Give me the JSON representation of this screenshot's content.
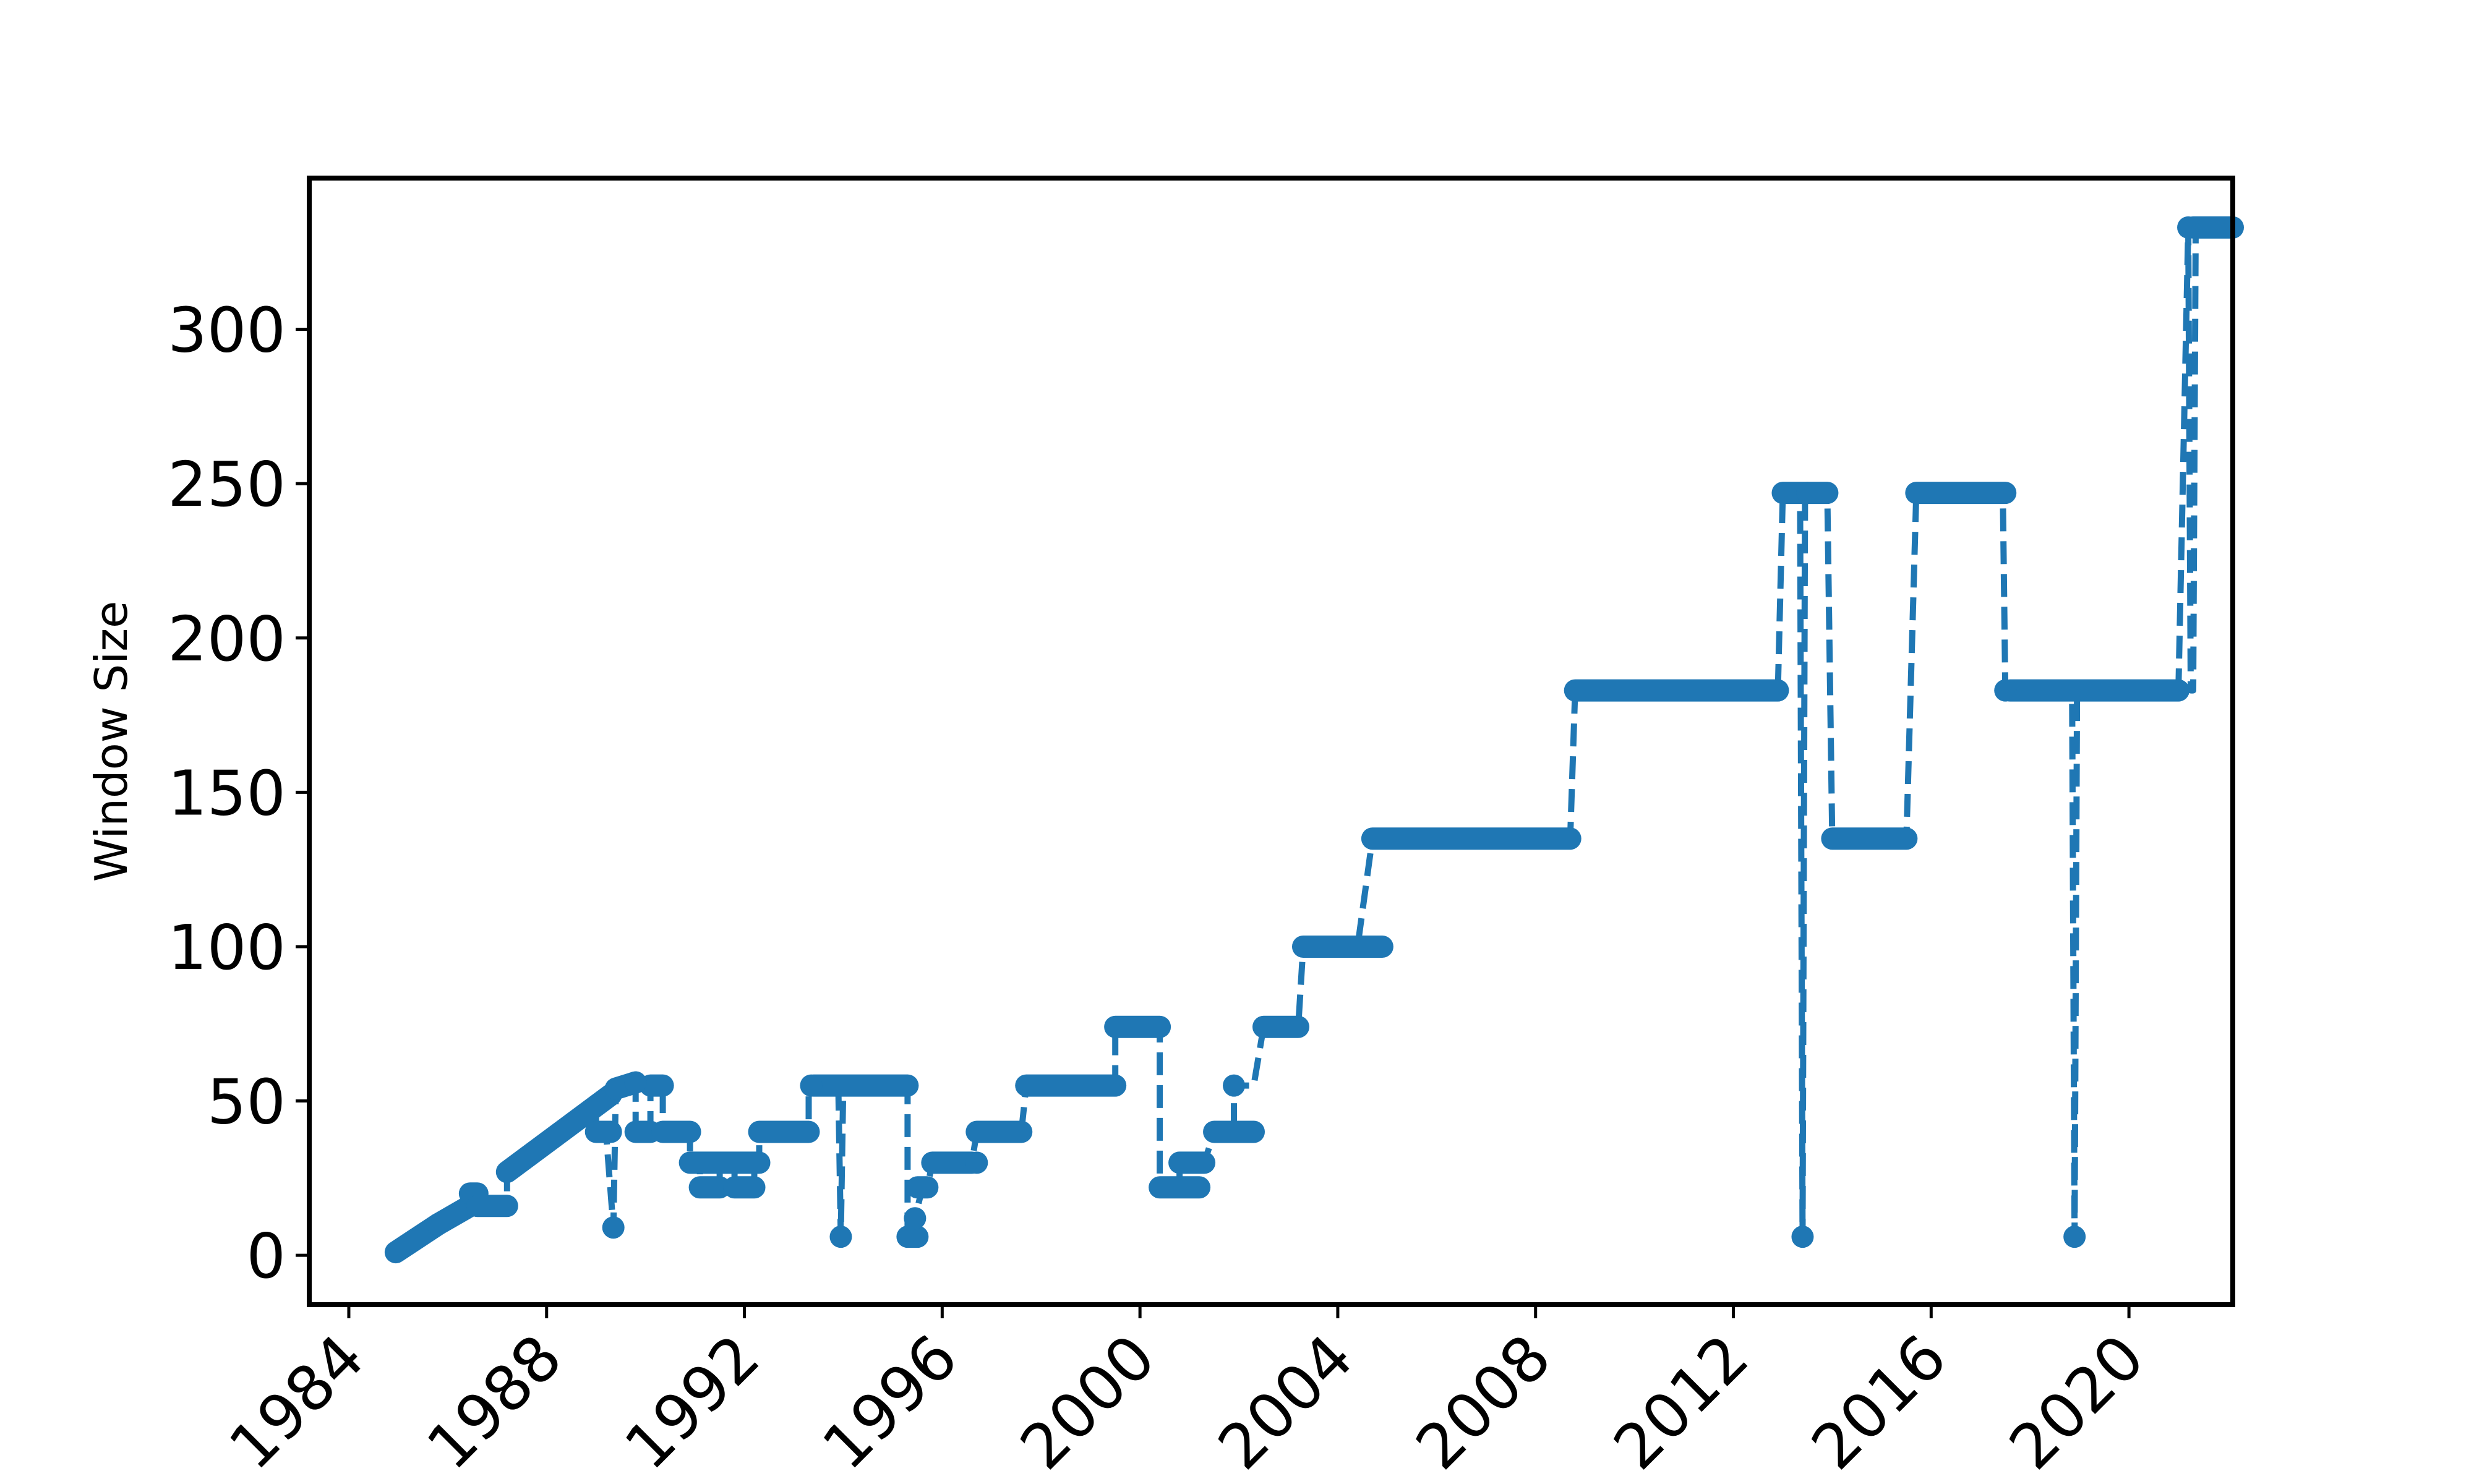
{
  "chart_data": {
    "type": "line",
    "title": "",
    "xlabel": "",
    "ylabel": "Window Size",
    "xlim": [
      1983.2,
      2022.1
    ],
    "ylim": [
      -16,
      349
    ],
    "grid": false,
    "legend": "none",
    "line_style": "dashed",
    "marker": "circle",
    "color": "#1f77b4",
    "x_ticks": [
      1984,
      1988,
      1992,
      1996,
      2000,
      2004,
      2008,
      2012,
      2016,
      2020
    ],
    "x_tick_labels": [
      "1984",
      "1988",
      "1992",
      "1996",
      "2000",
      "2004",
      "2008",
      "2012",
      "2016",
      "2020"
    ],
    "y_ticks": [
      0,
      50,
      100,
      150,
      200,
      250,
      300
    ],
    "y_tick_labels": [
      "0",
      "50",
      "100",
      "150",
      "200",
      "250",
      "300"
    ],
    "series": [
      {
        "segments": [
          {
            "x0": 1984.95,
            "x1": 1985.8,
            "y0": 1,
            "y1": 10
          },
          {
            "x0": 1985.8,
            "x1": 1986.45,
            "y0": 10,
            "y1": 16
          },
          {
            "x0": 1986.45,
            "x1": 1986.6,
            "y0": 20,
            "y1": 20
          },
          {
            "x0": 1986.6,
            "x1": 1987.2,
            "y0": 16,
            "y1": 16
          },
          {
            "x0": 1987.2,
            "x1": 1989.3,
            "y0": 27,
            "y1": 52
          },
          {
            "x0": 1989.0,
            "x1": 1989.3,
            "y0": 40,
            "y1": 40
          },
          {
            "x0": 1989.4,
            "x1": 1989.8,
            "y0": 54,
            "y1": 56
          },
          {
            "x0": 1989.8,
            "x1": 1990.1,
            "y0": 40,
            "y1": 40
          },
          {
            "x0": 1990.1,
            "x1": 1990.35,
            "y0": 55,
            "y1": 55
          },
          {
            "x0": 1990.35,
            "x1": 1990.9,
            "y0": 40,
            "y1": 40
          },
          {
            "x0": 1990.9,
            "x1": 1992.3,
            "y0": 30,
            "y1": 30
          },
          {
            "x0": 1991.1,
            "x1": 1991.5,
            "y0": 22,
            "y1": 22
          },
          {
            "x0": 1991.8,
            "x1": 1992.2,
            "y0": 22,
            "y1": 22
          },
          {
            "x0": 1992.3,
            "x1": 1993.3,
            "y0": 40,
            "y1": 40
          },
          {
            "x0": 1993.4,
            "x1": 1995.3,
            "y0": 55,
            "y1": 55
          },
          {
            "x0": 1995.3,
            "x1": 1995.5,
            "y0": 6,
            "y1": 6
          },
          {
            "x0": 1995.5,
            "x1": 1995.7,
            "y0": 22,
            "y1": 22
          },
          {
            "x0": 1995.8,
            "x1": 1996.6,
            "y0": 30,
            "y1": 30
          },
          {
            "x0": 1996.7,
            "x1": 1997.6,
            "y0": 40,
            "y1": 40
          },
          {
            "x0": 1997.7,
            "x1": 1999.5,
            "y0": 55,
            "y1": 55
          },
          {
            "x0": 1999.5,
            "x1": 2000.4,
            "y0": 74,
            "y1": 74
          },
          {
            "x0": 2000.4,
            "x1": 2001.2,
            "y0": 22,
            "y1": 22
          },
          {
            "x0": 2000.8,
            "x1": 2001.3,
            "y0": 30,
            "y1": 30
          },
          {
            "x0": 2001.5,
            "x1": 2002.3,
            "y0": 40,
            "y1": 40
          },
          {
            "x0": 2002.5,
            "x1": 2003.2,
            "y0": 74,
            "y1": 74
          },
          {
            "x0": 2003.3,
            "x1": 2004.9,
            "y0": 100,
            "y1": 100
          },
          {
            "x0": 2004.7,
            "x1": 2008.7,
            "y0": 135,
            "y1": 135
          },
          {
            "x0": 2008.8,
            "x1": 2012.9,
            "y0": 183,
            "y1": 183
          },
          {
            "x0": 2013.0,
            "x1": 2013.5,
            "y0": 247,
            "y1": 247
          },
          {
            "x0": 2013.5,
            "x1": 2013.9,
            "y0": 247,
            "y1": 247
          },
          {
            "x0": 2014.0,
            "x1": 2015.5,
            "y0": 135,
            "y1": 135
          },
          {
            "x0": 2015.7,
            "x1": 2017.5,
            "y0": 247,
            "y1": 247
          },
          {
            "x0": 2017.6,
            "x1": 2021.0,
            "y0": 183,
            "y1": 183
          },
          {
            "x0": 2021.3,
            "x1": 2022.1,
            "y0": 333,
            "y1": 333
          }
        ],
        "points": [
          {
            "x": 1989.35,
            "y": 9
          },
          {
            "x": 1989.8,
            "y": 56
          },
          {
            "x": 1993.35,
            "y": 55
          },
          {
            "x": 1993.95,
            "y": 6
          },
          {
            "x": 1995.45,
            "y": 12
          },
          {
            "x": 1996.7,
            "y": 30
          },
          {
            "x": 2001.9,
            "y": 55
          },
          {
            "x": 2013.4,
            "y": 6
          },
          {
            "x": 2017.5,
            "y": 183
          },
          {
            "x": 2018.9,
            "y": 6
          },
          {
            "x": 2021.2,
            "y": 333
          }
        ],
        "path": [
          {
            "x": 1984.95,
            "y": 1
          },
          {
            "x": 1985.8,
            "y": 10
          },
          {
            "x": 1986.45,
            "y": 16
          },
          {
            "x": 1986.45,
            "y": 20
          },
          {
            "x": 1986.6,
            "y": 20
          },
          {
            "x": 1986.6,
            "y": 16
          },
          {
            "x": 1987.2,
            "y": 16
          },
          {
            "x": 1987.2,
            "y": 27
          },
          {
            "x": 1989.0,
            "y": 50
          },
          {
            "x": 1989.0,
            "y": 40
          },
          {
            "x": 1989.2,
            "y": 40
          },
          {
            "x": 1989.35,
            "y": 9
          },
          {
            "x": 1989.4,
            "y": 54
          },
          {
            "x": 1989.8,
            "y": 56
          },
          {
            "x": 1989.8,
            "y": 40
          },
          {
            "x": 1990.1,
            "y": 40
          },
          {
            "x": 1990.1,
            "y": 55
          },
          {
            "x": 1990.35,
            "y": 55
          },
          {
            "x": 1990.35,
            "y": 40
          },
          {
            "x": 1990.9,
            "y": 40
          },
          {
            "x": 1990.9,
            "y": 30
          },
          {
            "x": 1991.1,
            "y": 30
          },
          {
            "x": 1991.1,
            "y": 22
          },
          {
            "x": 1991.5,
            "y": 22
          },
          {
            "x": 1991.5,
            "y": 30
          },
          {
            "x": 1991.8,
            "y": 30
          },
          {
            "x": 1991.8,
            "y": 22
          },
          {
            "x": 1992.2,
            "y": 22
          },
          {
            "x": 1992.2,
            "y": 30
          },
          {
            "x": 1992.3,
            "y": 30
          },
          {
            "x": 1992.3,
            "y": 40
          },
          {
            "x": 1993.3,
            "y": 40
          },
          {
            "x": 1993.3,
            "y": 55
          },
          {
            "x": 1993.9,
            "y": 55
          },
          {
            "x": 1993.95,
            "y": 6
          },
          {
            "x": 1994.0,
            "y": 55
          },
          {
            "x": 1995.3,
            "y": 55
          },
          {
            "x": 1995.3,
            "y": 6
          },
          {
            "x": 1995.45,
            "y": 6
          },
          {
            "x": 1995.45,
            "y": 12
          },
          {
            "x": 1995.6,
            "y": 22
          },
          {
            "x": 1995.7,
            "y": 22
          },
          {
            "x": 1995.8,
            "y": 30
          },
          {
            "x": 1996.6,
            "y": 30
          },
          {
            "x": 1996.7,
            "y": 40
          },
          {
            "x": 1997.6,
            "y": 40
          },
          {
            "x": 1997.7,
            "y": 55
          },
          {
            "x": 1999.5,
            "y": 55
          },
          {
            "x": 1999.5,
            "y": 74
          },
          {
            "x": 2000.4,
            "y": 74
          },
          {
            "x": 2000.4,
            "y": 22
          },
          {
            "x": 2000.8,
            "y": 22
          },
          {
            "x": 2000.8,
            "y": 30
          },
          {
            "x": 2001.3,
            "y": 30
          },
          {
            "x": 2001.5,
            "y": 40
          },
          {
            "x": 2001.9,
            "y": 40
          },
          {
            "x": 2001.9,
            "y": 55
          },
          {
            "x": 2002.3,
            "y": 55
          },
          {
            "x": 2002.5,
            "y": 74
          },
          {
            "x": 2003.2,
            "y": 74
          },
          {
            "x": 2003.3,
            "y": 100
          },
          {
            "x": 2004.4,
            "y": 100
          },
          {
            "x": 2004.7,
            "y": 135
          },
          {
            "x": 2008.7,
            "y": 135
          },
          {
            "x": 2008.8,
            "y": 183
          },
          {
            "x": 2012.9,
            "y": 183
          },
          {
            "x": 2013.0,
            "y": 247
          },
          {
            "x": 2013.35,
            "y": 247
          },
          {
            "x": 2013.4,
            "y": 6
          },
          {
            "x": 2013.45,
            "y": 247
          },
          {
            "x": 2013.9,
            "y": 247
          },
          {
            "x": 2014.0,
            "y": 135
          },
          {
            "x": 2015.5,
            "y": 135
          },
          {
            "x": 2015.7,
            "y": 247
          },
          {
            "x": 2017.45,
            "y": 247
          },
          {
            "x": 2017.5,
            "y": 183
          },
          {
            "x": 2018.85,
            "y": 183
          },
          {
            "x": 2018.9,
            "y": 6
          },
          {
            "x": 2018.95,
            "y": 183
          },
          {
            "x": 2021.0,
            "y": 183
          },
          {
            "x": 2021.2,
            "y": 333
          },
          {
            "x": 2021.25,
            "y": 183
          },
          {
            "x": 2021.3,
            "y": 183
          },
          {
            "x": 2021.35,
            "y": 333
          },
          {
            "x": 2022.1,
            "y": 333
          }
        ]
      }
    ]
  }
}
